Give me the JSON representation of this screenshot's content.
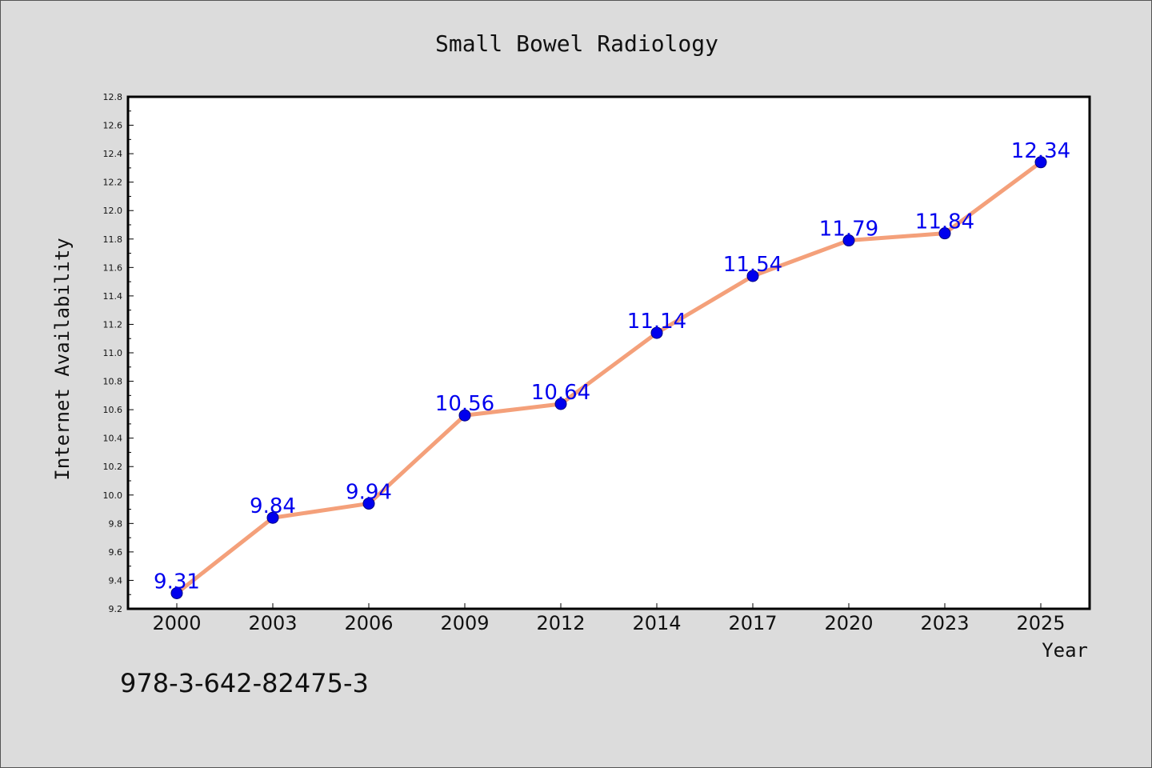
{
  "chart_data": {
    "type": "line",
    "title": "Small Bowel Radiology",
    "xlabel": "Year",
    "ylabel": "Internet Availability",
    "categories": [
      "2000",
      "2003",
      "2006",
      "2009",
      "2012",
      "2014",
      "2017",
      "2020",
      "2023",
      "2025"
    ],
    "series": [
      {
        "values": [
          9.31,
          9.84,
          9.94,
          10.56,
          10.64,
          11.14,
          11.54,
          11.79,
          11.84,
          12.34
        ]
      }
    ],
    "data_labels": [
      "9.31",
      "9.84",
      "9.94",
      "10.56",
      "10.64",
      "11.14",
      "11.54",
      "11.79",
      "11.84",
      "12.34"
    ],
    "ylim": [
      9.2,
      12.8
    ],
    "yticks": [
      "9.2",
      "9.4",
      "9.6",
      "9.8",
      "10.0",
      "10.2",
      "10.4",
      "10.6",
      "10.8",
      "11.0",
      "11.2",
      "11.4",
      "11.6",
      "11.8",
      "12.0",
      "12.2",
      "12.4",
      "12.6",
      "12.8"
    ],
    "grid": false,
    "legend": "none"
  },
  "footer": {
    "isbn": "978-3-642-82475-3"
  },
  "colors": {
    "page_background": "#dcdcdc",
    "plot_background": "#ffffff",
    "line": "#f4a07a",
    "marker": "#0000ee",
    "marker_outline": "#000080",
    "data_label": "#0000ee"
  }
}
